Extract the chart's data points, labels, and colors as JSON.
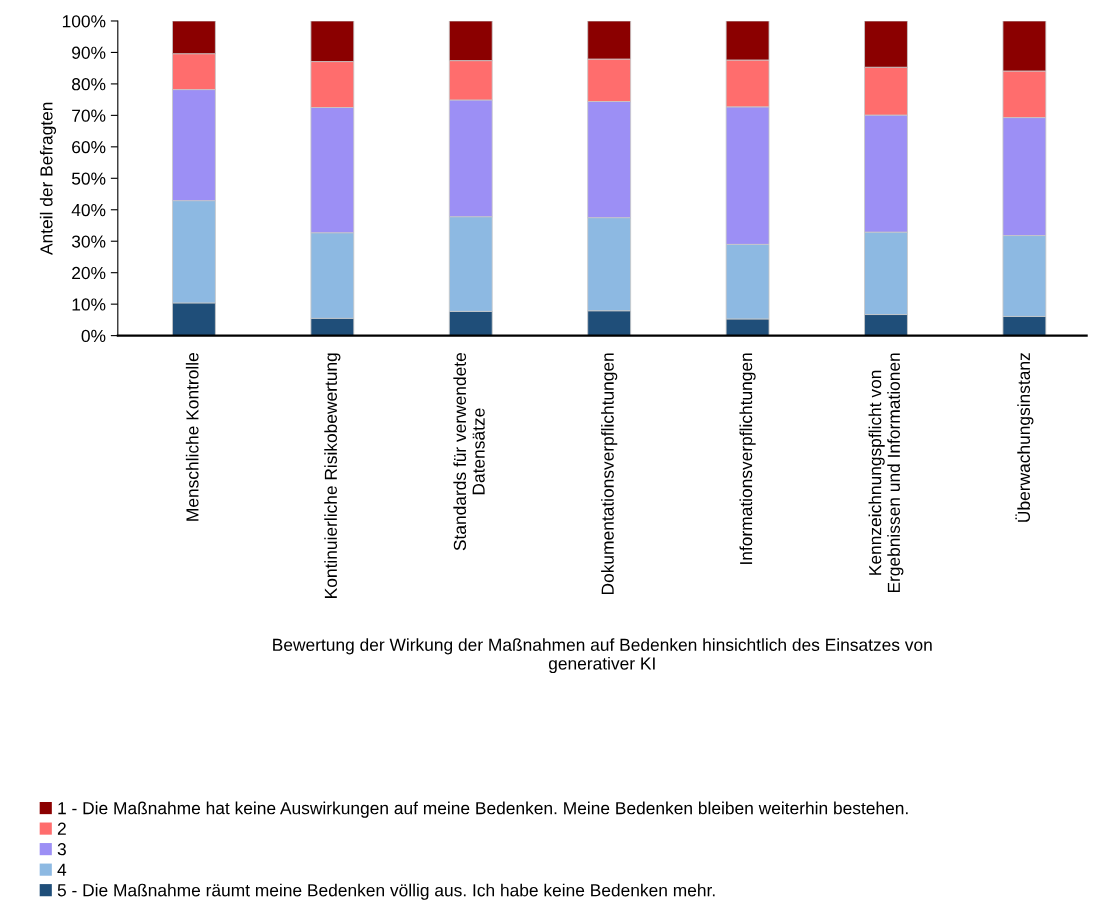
{
  "chart_data": {
    "type": "bar",
    "stacked": true,
    "categories": [
      "Menschliche Kontrolle",
      "Kontinuierliche Risikobewertung",
      "Standards für verwendete\nDatensätze",
      "Dokumentationsverpflichtungen",
      "Informationsverpflichtungen",
      "Kennzeichnungspflicht von\nErgebnissen und Informationen",
      "Überwachungsinstanz"
    ],
    "series": [
      {
        "name": "5 - Die Maßnahme räumt meine Bedenken völlig aus. Ich habe keine Bedenken mehr.",
        "color": "#1f4e79",
        "values": [
          10.4,
          5.5,
          7.7,
          7.9,
          5.3,
          6.7,
          6.1
        ]
      },
      {
        "name": "4",
        "color": "#8db9e2",
        "values": [
          32.5,
          27.2,
          30.1,
          29.6,
          23.7,
          26.2,
          25.7
        ]
      },
      {
        "name": "3",
        "color": "#9c8ff5",
        "values": [
          35.3,
          39.8,
          37.1,
          36.9,
          43.7,
          37.2,
          37.5
        ]
      },
      {
        "name": "2",
        "color": "#ff6d6d",
        "values": [
          11.4,
          14.6,
          12.5,
          13.5,
          14.9,
          15.2,
          14.8
        ]
      },
      {
        "name": "1 - Die Maßnahme hat keine Auswirkungen auf meine Bedenken. Meine Bedenken bleiben weiterhin bestehen.",
        "color": "#8b0000",
        "values": [
          10.4,
          12.9,
          12.6,
          12.1,
          12.4,
          14.7,
          15.9
        ]
      }
    ],
    "xlabel": "Bewertung der Wirkung der Maßnahmen auf Bedenken hinsichtlich des Einsatzes von\ngenerativer KI",
    "ylabel": "Anteil der Befragten",
    "ylim": [
      0,
      100
    ],
    "yticks": [
      {
        "value": 0,
        "label": "0%"
      },
      {
        "value": 10,
        "label": "10%"
      },
      {
        "value": 20,
        "label": "20%"
      },
      {
        "value": 30,
        "label": "30%"
      },
      {
        "value": 40,
        "label": "40%"
      },
      {
        "value": 50,
        "label": "50%"
      },
      {
        "value": 60,
        "label": "60%"
      },
      {
        "value": 70,
        "label": "70%"
      },
      {
        "value": 80,
        "label": "80%"
      },
      {
        "value": 90,
        "label": "90%"
      },
      {
        "value": 100,
        "label": "100%"
      }
    ],
    "grid": false,
    "legend": "bottom"
  }
}
